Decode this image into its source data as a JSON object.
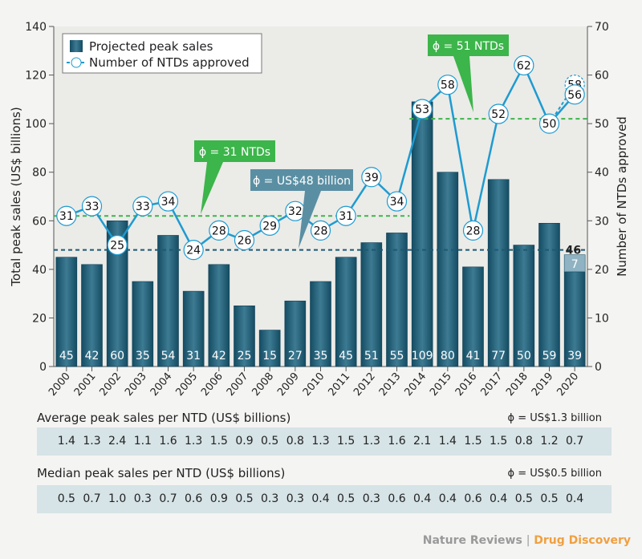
{
  "chart_data": {
    "type": "bar+line",
    "categories": [
      "2000",
      "2001",
      "2002",
      "2003",
      "2004",
      "2005",
      "2006",
      "2007",
      "2008",
      "2009",
      "2010",
      "2011",
      "2012",
      "2013",
      "2014",
      "2015",
      "2016",
      "2017",
      "2018",
      "2019",
      "2020"
    ],
    "series": [
      {
        "name": "Projected peak sales",
        "type": "bar",
        "axis": "left",
        "values": [
          45,
          42,
          60,
          35,
          54,
          31,
          42,
          25,
          15,
          27,
          35,
          45,
          51,
          55,
          109,
          80,
          41,
          77,
          50,
          59,
          39
        ],
        "color": "#1d5a72"
      },
      {
        "name": "Number of NTDs approved",
        "type": "line",
        "axis": "right",
        "values": [
          31,
          33,
          25,
          33,
          34,
          24,
          28,
          26,
          29,
          32,
          28,
          31,
          39,
          34,
          53,
          58,
          28,
          52,
          62,
          50,
          56
        ],
        "color": "#1e9bd0"
      }
    ],
    "extra_2020": {
      "bar_addition": 7,
      "bar_total_label": "46",
      "line_alt_value": 58
    },
    "ylabel": "Total peak sales (US$ billions)",
    "y2label": "Number of NTDs approved",
    "ylim": [
      0,
      140
    ],
    "y2lim": [
      0,
      70
    ],
    "yticks": [
      "0",
      "20",
      "40",
      "60",
      "80",
      "100",
      "120",
      "140"
    ],
    "y2ticks": [
      "0",
      "10",
      "20",
      "30",
      "40",
      "50",
      "60",
      "70"
    ],
    "legend_position": "top-left",
    "reference_lines": [
      {
        "label": "ϕ = 31 NTDs",
        "value": 31,
        "axis": "right",
        "from": "2000",
        "to": "2013",
        "color": "#3cb54a"
      },
      {
        "label": "ϕ = 51 NTDs",
        "value": 51,
        "axis": "right",
        "from": "2014",
        "to": "2020",
        "color": "#3cb54a"
      },
      {
        "label": "ϕ = US$48 billion",
        "value": 48,
        "axis": "left",
        "from": "2000",
        "to": "2020",
        "color": "#1d5a72"
      }
    ]
  },
  "tables": [
    {
      "label": "Average peak sales per NTD (US$ billions)",
      "note": "ϕ = US$1.3 billion",
      "values": [
        "1.4",
        "1.3",
        "2.4",
        "1.1",
        "1.6",
        "1.3",
        "1.5",
        "0.9",
        "0.5",
        "0.8",
        "1.3",
        "1.5",
        "1.3",
        "1.6",
        "2.1",
        "1.4",
        "1.5",
        "1.5",
        "0.8",
        "1.2",
        "0.7"
      ]
    },
    {
      "label": "Median peak sales per NTD (US$ billions)",
      "note": "ϕ = US$0.5 billion",
      "values": [
        "0.5",
        "0.7",
        "1.0",
        "0.3",
        "0.7",
        "0.6",
        "0.9",
        "0.5",
        "0.3",
        "0.3",
        "0.4",
        "0.5",
        "0.3",
        "0.6",
        "0.4",
        "0.4",
        "0.6",
        "0.4",
        "0.5",
        "0.5",
        "0.4"
      ]
    }
  ],
  "footer": {
    "publisher": "Nature Reviews",
    "separator": "|",
    "journal": "Drug Discovery"
  }
}
